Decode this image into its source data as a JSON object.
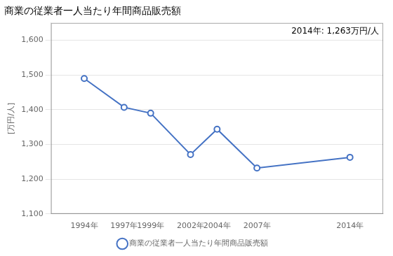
{
  "chart_data": {
    "type": "line",
    "title": "商業の従業者一人当たり年間商品販売額",
    "ylabel": "[万円/人]",
    "annotation": "2014年: 1,263万円/人",
    "x": [
      1994,
      1997,
      1999,
      2002,
      2004,
      2007,
      2014
    ],
    "series": [
      {
        "name": "商業の従業者一人当たり年間商品販売額",
        "color": "#4472C4",
        "marker": "circle",
        "values": [
          1490,
          1407,
          1390,
          1271,
          1344,
          1232,
          1263
        ]
      }
    ],
    "xlim": [
      1991.5,
      2016.5
    ],
    "xticks": [
      {
        "value": 1994,
        "label": "1994年"
      },
      {
        "value": 1997,
        "label": "1997年"
      },
      {
        "value": 1999,
        "label": "1999年"
      },
      {
        "value": 2002,
        "label": "2002年"
      },
      {
        "value": 2004,
        "label": "2004年"
      },
      {
        "value": 2007,
        "label": "2007年"
      },
      {
        "value": 2014,
        "label": "2014年"
      }
    ],
    "ylim": [
      1100,
      1650
    ],
    "yticks": [
      {
        "value": 1100,
        "label": "1,100"
      },
      {
        "value": 1200,
        "label": "1,200"
      },
      {
        "value": 1300,
        "label": "1,300"
      },
      {
        "value": 1400,
        "label": "1,400"
      },
      {
        "value": 1500,
        "label": "1,500"
      },
      {
        "value": 1600,
        "label": "1,600"
      }
    ],
    "grid": "y",
    "legend": "bottom"
  }
}
